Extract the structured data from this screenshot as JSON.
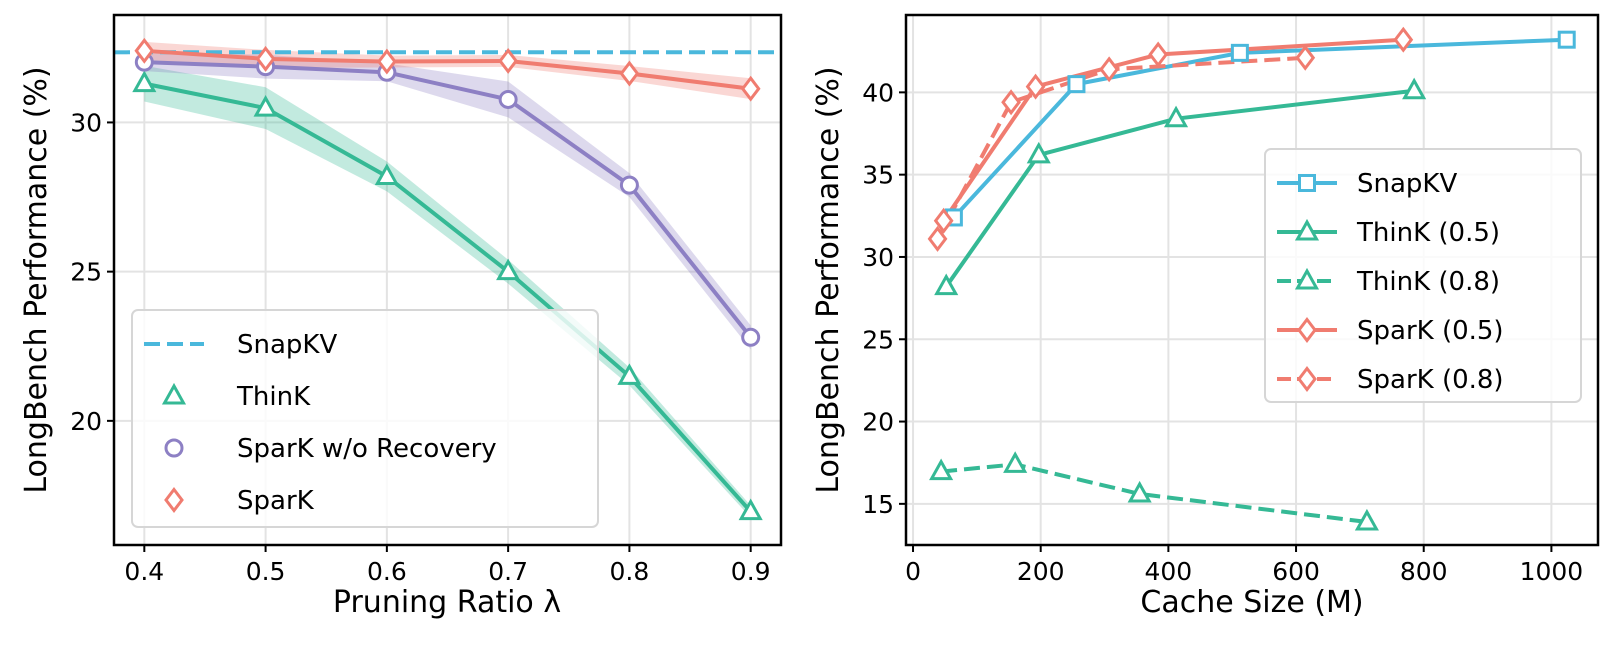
{
  "chart_data": [
    {
      "type": "line",
      "xlabel": "Pruning Ratio λ",
      "ylabel": "LongBench Performance (%)",
      "xlim": [
        0.375,
        0.925
      ],
      "ylim": [
        15.84,
        33.6
      ],
      "xticks": [
        0.4,
        0.5,
        0.6,
        0.7,
        0.8,
        0.9
      ],
      "xtick_labels": [
        "0.4",
        "0.5",
        "0.6",
        "0.7",
        "0.8",
        "0.9"
      ],
      "yticks": [
        20,
        25,
        30
      ],
      "ytick_labels": [
        "20",
        "25",
        "30"
      ],
      "grid": true,
      "legend_placement": "lower-left",
      "series": [
        {
          "name": "SnapKV",
          "color": "#4ab8dc",
          "style": "dashed-hline",
          "marker": "none",
          "y": 32.35
        },
        {
          "name": "ThinK",
          "color": "#35b995",
          "style": "solid",
          "marker": "triangle",
          "x": [
            0.4,
            0.5,
            0.6,
            0.7,
            0.8,
            0.9
          ],
          "y": [
            31.3,
            30.48,
            28.19,
            25.0,
            21.49,
            16.96
          ],
          "band": [
            0.6,
            0.7,
            0.5,
            0.4,
            0.3,
            0.2
          ]
        },
        {
          "name": "SparK w/o Recovery",
          "color": "#8d80c4",
          "style": "solid",
          "marker": "circle",
          "x": [
            0.4,
            0.5,
            0.6,
            0.7,
            0.8,
            0.9
          ],
          "y": [
            32.02,
            31.87,
            31.68,
            30.77,
            27.9,
            22.8
          ],
          "band": [
            0.3,
            0.4,
            0.3,
            0.6,
            0.4,
            0.4
          ]
        },
        {
          "name": "SparK",
          "color": "#f07c70",
          "style": "solid",
          "marker": "diamond",
          "x": [
            0.4,
            0.5,
            0.6,
            0.7,
            0.8,
            0.9
          ],
          "y": [
            32.4,
            32.13,
            32.04,
            32.06,
            31.64,
            31.13
          ],
          "band": [
            0.3,
            0.3,
            0.2,
            0.2,
            0.25,
            0.35
          ]
        }
      ]
    },
    {
      "type": "line",
      "xlabel": "Cache Size (M)",
      "ylabel": "LongBench Performance (%)",
      "xlim": [
        -11,
        1073
      ],
      "ylim": [
        12.5,
        44.7
      ],
      "xticks": [
        0,
        200,
        400,
        600,
        800,
        1000
      ],
      "xtick_labels": [
        "0",
        "200",
        "400",
        "600",
        "800",
        "1000"
      ],
      "yticks": [
        15,
        20,
        25,
        30,
        35,
        40
      ],
      "ytick_labels": [
        "15",
        "20",
        "25",
        "30",
        "35",
        "40"
      ],
      "grid": true,
      "legend_placement": "center-right",
      "series": [
        {
          "name": "SnapKV",
          "color": "#4ab8dc",
          "style": "solid",
          "marker": "square",
          "x": [
            64,
            256,
            512,
            1024
          ],
          "y": [
            32.4,
            40.5,
            42.4,
            43.2
          ]
        },
        {
          "name": "ThinK (0.5)",
          "color": "#35b995",
          "style": "solid",
          "marker": "triangle",
          "x": [
            52,
            197,
            412,
            785
          ],
          "y": [
            28.2,
            36.2,
            38.4,
            40.1
          ]
        },
        {
          "name": "ThinK (0.8)",
          "color": "#35b995",
          "style": "dashed",
          "marker": "triangle",
          "x": [
            44,
            160,
            355,
            711
          ],
          "y": [
            16.96,
            17.4,
            15.6,
            13.9
          ]
        },
        {
          "name": "SparK (0.5)",
          "color": "#f07c70",
          "style": "solid",
          "marker": "diamond",
          "x": [
            48,
            192,
            384,
            768
          ],
          "y": [
            32.2,
            40.35,
            42.3,
            43.2
          ]
        },
        {
          "name": "SparK (0.8)",
          "color": "#f07c70",
          "style": "dashed",
          "marker": "diamond",
          "x": [
            38.4,
            153.6,
            307.2,
            614.4
          ],
          "y": [
            31.1,
            39.4,
            41.4,
            42.1
          ]
        }
      ]
    }
  ]
}
